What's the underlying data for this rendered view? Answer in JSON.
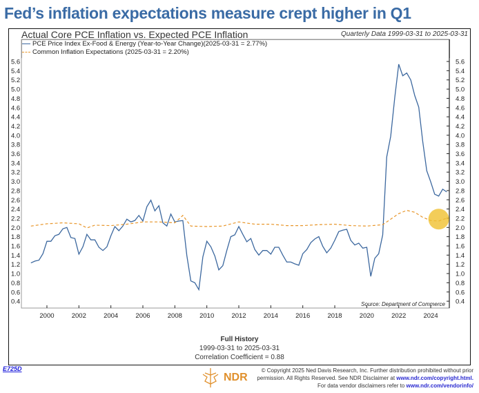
{
  "header": {
    "title": "Fed’s inflation expectations measure crept higher in Q1"
  },
  "footer": {
    "stats_title": "Full History",
    "stats_range": "1999-03-31 to 2025-03-31",
    "stats_corr": "Correlation Coefficient = 0.88",
    "code": "E725D",
    "logo_text": "NDR",
    "copyright_1": "© Copyright 2025 Ned Davis Research, Inc. Further distribution prohibited without prior",
    "copyright_2": "permission. All Rights Reserved. See NDR Disclaimer at",
    "copyright_link": "www.ndr.com/copyright.html.",
    "vendor_text": "For data vendor disclaimers refer to",
    "vendor_link": "www.ndr.com/vendorinfo/"
  },
  "chart_data": {
    "type": "line",
    "title": "Actual Core PCE Inflation vs. Expected PCE Inflation",
    "subtitle": "Quarterly Data 1999-03-31 to 2025-03-31",
    "source": "Source:  Department of Commerce",
    "ylim": [
      0.4,
      5.7
    ],
    "xlim": [
      1999.0,
      2025.6
    ],
    "yticks": [
      "0.4",
      "0.6",
      "0.8",
      "1.0",
      "1.2",
      "1.4",
      "1.6",
      "1.8",
      "2.0",
      "2.2",
      "2.4",
      "2.6",
      "2.8",
      "3.0",
      "3.2",
      "3.4",
      "3.6",
      "3.8",
      "4.0",
      "4.2",
      "4.4",
      "4.6",
      "4.8",
      "5.0",
      "5.2",
      "5.4",
      "5.6"
    ],
    "xticks": [
      "2000",
      "2002",
      "2004",
      "2006",
      "2008",
      "2010",
      "2012",
      "2014",
      "2016",
      "2018",
      "2020",
      "2022",
      "2024"
    ],
    "colors": {
      "pce": "#3b679e",
      "expect": "#e8962a",
      "highlight": "#f0c030"
    },
    "series": [
      {
        "name": "PCE Price Index Ex-Food & Energy (Year-to-Year Change)(2025-03-31 = 2.77%)",
        "start": 1999.0,
        "step": 0.25,
        "values": [
          1.23,
          1.27,
          1.29,
          1.43,
          1.7,
          1.7,
          1.82,
          1.85,
          1.97,
          2.0,
          1.78,
          1.76,
          1.42,
          1.58,
          1.85,
          1.73,
          1.73,
          1.57,
          1.5,
          1.58,
          1.82,
          2.02,
          1.93,
          2.03,
          2.18,
          2.12,
          2.15,
          2.26,
          2.14,
          2.45,
          2.59,
          2.36,
          2.47,
          2.1,
          2.03,
          2.29,
          2.12,
          2.14,
          2.15,
          1.39,
          0.84,
          0.8,
          0.65,
          1.36,
          1.7,
          1.58,
          1.38,
          1.08,
          1.17,
          1.5,
          1.8,
          1.84,
          2.02,
          1.85,
          1.69,
          1.76,
          1.52,
          1.4,
          1.5,
          1.5,
          1.42,
          1.57,
          1.57,
          1.4,
          1.25,
          1.25,
          1.21,
          1.18,
          1.43,
          1.52,
          1.67,
          1.75,
          1.8,
          1.59,
          1.45,
          1.55,
          1.72,
          1.91,
          1.94,
          1.96,
          1.72,
          1.62,
          1.66,
          1.55,
          1.57,
          0.94,
          1.33,
          1.43,
          1.84,
          3.53,
          3.98,
          4.81,
          5.54,
          5.29,
          5.35,
          5.2,
          4.86,
          4.61,
          3.86,
          3.23,
          2.99,
          2.72,
          2.68,
          2.83,
          2.77
        ]
      },
      {
        "name": "Common Inflation Expectations (2025-03-31 = 2.20%)",
        "style": "dashed",
        "x": [
          1999,
          2000,
          2001,
          2002,
          2002.5,
          2003,
          2004,
          2005,
          2006,
          2007,
          2008,
          2008.5,
          2009,
          2010,
          2011,
          2012,
          2013,
          2014,
          2015,
          2016,
          2017,
          2018,
          2019,
          2020,
          2021,
          2022,
          2022.5,
          2023,
          2023.5,
          2024,
          2024.5,
          2025
        ],
        "values": [
          2.03,
          2.08,
          2.1,
          2.08,
          1.99,
          2.05,
          2.04,
          2.07,
          2.12,
          2.12,
          2.1,
          2.26,
          2.03,
          2.02,
          2.03,
          2.12,
          2.07,
          2.07,
          2.04,
          2.04,
          2.06,
          2.07,
          2.04,
          2.03,
          2.06,
          2.3,
          2.37,
          2.33,
          2.22,
          2.15,
          2.14,
          2.2
        ]
      }
    ],
    "highlight": {
      "x": 2024.5,
      "y": 2.18
    }
  }
}
